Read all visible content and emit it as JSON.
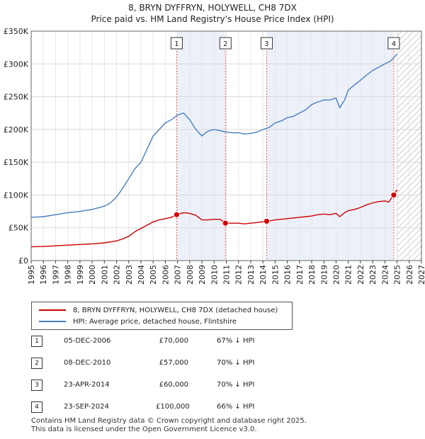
{
  "chart_data": {
    "type": "line",
    "title": "8, BRYN DYFFRYN, HOLYWELL, CH8 7DX",
    "subtitle": "Price paid vs. HM Land Registry's House Price Index (HPI)",
    "xlim": [
      1995,
      2027
    ],
    "ylim": [
      0,
      350000
    ],
    "x_ticks": [
      "1995",
      "1996",
      "1997",
      "1998",
      "1999",
      "2000",
      "2001",
      "2002",
      "2003",
      "2004",
      "2005",
      "2006",
      "2007",
      "2008",
      "2009",
      "2010",
      "2011",
      "2012",
      "2013",
      "2014",
      "2015",
      "2016",
      "2017",
      "2018",
      "2019",
      "2020",
      "2021",
      "2022",
      "2023",
      "2024",
      "2025",
      "2026",
      "2027"
    ],
    "y_ticks": [
      {
        "value": 0,
        "label": "£0"
      },
      {
        "value": 50000,
        "label": "£50K"
      },
      {
        "value": 100000,
        "label": "£100K"
      },
      {
        "value": 150000,
        "label": "£150K"
      },
      {
        "value": 200000,
        "label": "£200K"
      },
      {
        "value": 250000,
        "label": "£250K"
      },
      {
        "value": 300000,
        "label": "£300K"
      },
      {
        "value": 350000,
        "label": "£350K"
      }
    ],
    "series": [
      {
        "name": "8, BRYN DYFFRYN, HOLYWELL, CH8 7DX (detached house)",
        "color": "#cc0000",
        "x": [
          1995.0,
          1996.0,
          1997.0,
          1998.0,
          1999.0,
          2000.0,
          2001.0,
          2002.0,
          2002.5,
          2003.0,
          2003.5,
          2004.0,
          2004.5,
          2005.0,
          2005.5,
          2006.0,
          2006.5,
          2006.93,
          2007.5,
          2008.0,
          2008.5,
          2009.0,
          2009.5,
          2010.0,
          2010.5,
          2010.93,
          2011.5,
          2012.0,
          2012.5,
          2013.0,
          2013.5,
          2014.31,
          2015.0,
          2015.5,
          2016.0,
          2016.5,
          2017.0,
          2017.5,
          2018.0,
          2018.5,
          2019.0,
          2019.5,
          2020.0,
          2020.3,
          2020.7,
          2021.0,
          2021.5,
          2022.0,
          2022.5,
          2023.0,
          2023.5,
          2024.0,
          2024.3,
          2024.73,
          2025.0
        ],
        "y": [
          21000,
          21500,
          22500,
          23500,
          24500,
          25500,
          27000,
          30000,
          33000,
          37000,
          44000,
          49000,
          54000,
          59000,
          62000,
          64000,
          66000,
          70000,
          73000,
          72000,
          69000,
          62000,
          62000,
          63000,
          63000,
          57000,
          57000,
          57000,
          56000,
          57000,
          58000,
          60000,
          62000,
          63000,
          64000,
          65000,
          66000,
          67000,
          68000,
          70000,
          71000,
          70000,
          72000,
          67000,
          73000,
          76000,
          78000,
          81000,
          85000,
          88000,
          90000,
          91000,
          89000,
          100000,
          108000
        ]
      },
      {
        "name": "HPI: Average price, detached house, Flintshire",
        "color": "#4a7ebf",
        "x": [
          1995.0,
          1996.0,
          1997.0,
          1998.0,
          1999.0,
          2000.0,
          2001.0,
          2001.5,
          2002.0,
          2002.5,
          2003.0,
          2003.5,
          2004.0,
          2004.5,
          2005.0,
          2005.5,
          2006.0,
          2006.5,
          2007.0,
          2007.5,
          2008.0,
          2008.5,
          2009.0,
          2009.3,
          2009.6,
          2010.0,
          2010.5,
          2011.0,
          2011.5,
          2012.0,
          2012.5,
          2013.0,
          2013.5,
          2014.0,
          2014.5,
          2015.0,
          2015.5,
          2016.0,
          2016.5,
          2017.0,
          2017.5,
          2018.0,
          2018.5,
          2019.0,
          2019.5,
          2020.0,
          2020.3,
          2020.7,
          2021.0,
          2021.5,
          2022.0,
          2022.5,
          2023.0,
          2023.5,
          2024.0,
          2024.5,
          2025.0
        ],
        "y": [
          66000,
          67000,
          70000,
          73000,
          75000,
          78000,
          83000,
          88000,
          97000,
          110000,
          125000,
          140000,
          150000,
          170000,
          190000,
          200000,
          210000,
          215000,
          222000,
          225000,
          215000,
          200000,
          190000,
          195000,
          198000,
          200000,
          198000,
          196000,
          195000,
          195000,
          193000,
          194000,
          196000,
          200000,
          203000,
          210000,
          213000,
          218000,
          220000,
          225000,
          230000,
          238000,
          242000,
          245000,
          245000,
          248000,
          233000,
          245000,
          260000,
          268000,
          275000,
          283000,
          290000,
          295000,
          300000,
          305000,
          315000
        ]
      }
    ],
    "sales": [
      {
        "num": "1",
        "x": 2006.93,
        "y": 70000,
        "date": "05-DEC-2006",
        "price": "£70,000",
        "hpi": "67% ↓ HPI"
      },
      {
        "num": "2",
        "x": 2010.93,
        "y": 57000,
        "date": "08-DEC-2010",
        "price": "£57,000",
        "hpi": "70% ↓ HPI"
      },
      {
        "num": "3",
        "x": 2014.31,
        "y": 60000,
        "date": "23-APR-2014",
        "price": "£60,000",
        "hpi": "70% ↓ HPI"
      },
      {
        "num": "4",
        "x": 2024.73,
        "y": 100000,
        "date": "23-SEP-2024",
        "price": "£100,000",
        "hpi": "66% ↓ HPI"
      }
    ],
    "shaded_spans": [
      [
        2006.93,
        2010.93
      ],
      [
        2014.31,
        2024.73
      ]
    ],
    "future_hatch_start": 2025.0
  },
  "footer": {
    "line1": "Contains HM Land Registry data © Crown copyright and database right 2025.",
    "line2": "This data is licensed under the Open Government Licence v3.0."
  }
}
